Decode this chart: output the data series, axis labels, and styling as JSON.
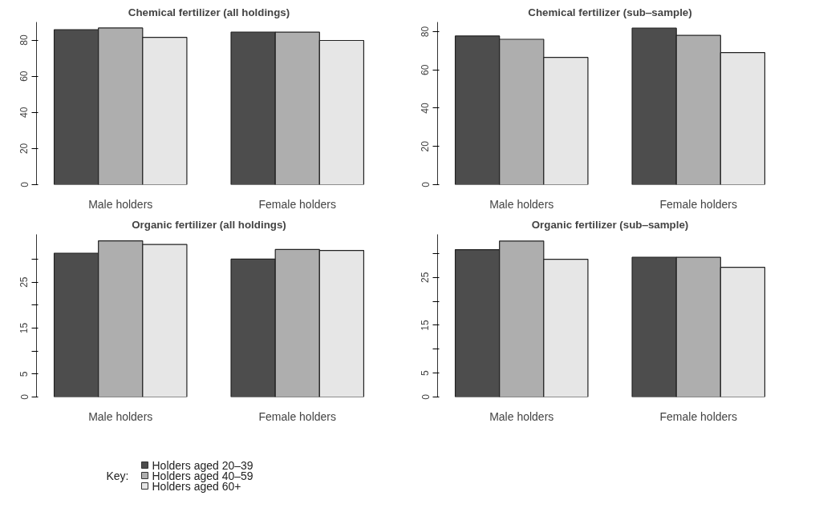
{
  "chart_data": [
    {
      "type": "bar",
      "title": "Chemical fertilizer (all holdings)",
      "categories": [
        "Male holders",
        "Female holders"
      ],
      "ylim": [
        0,
        90
      ],
      "yticks": [
        0,
        20,
        40,
        60,
        80
      ],
      "series": [
        {
          "color": "#4d4d4d",
          "values": [
            85.7,
            84.4
          ]
        },
        {
          "color": "#aeaeae",
          "values": [
            86.7,
            84.4
          ]
        },
        {
          "color": "#e6e6e6",
          "values": [
            81.5,
            79.8
          ]
        }
      ]
    },
    {
      "type": "bar",
      "title": "Chemical fertilizer (sub‒sample)",
      "categories": [
        "Male holders",
        "Female holders"
      ],
      "ylim": [
        0,
        85
      ],
      "yticks": [
        0,
        20,
        40,
        60,
        80
      ],
      "series": [
        {
          "color": "#4d4d4d",
          "values": [
            77.7,
            81.8
          ]
        },
        {
          "color": "#aeaeae",
          "values": [
            76.0,
            78.0
          ]
        },
        {
          "color": "#e6e6e6",
          "values": [
            66.5,
            69.0
          ]
        }
      ]
    },
    {
      "type": "bar",
      "title": "Organic fertilizer (all holdings)",
      "categories": [
        "Male holders",
        "Female holders"
      ],
      "ylim": [
        0,
        35.4
      ],
      "yticks": [
        0,
        5,
        {
          "value": 10,
          "label": null
        },
        15,
        {
          "value": 20,
          "label": null
        },
        25,
        {
          "value": 30,
          "label": null
        }
      ],
      "legend": "bottom",
      "legend_title": "Key:",
      "series": [
        {
          "name": "Holders aged 20–39",
          "color": "#4d4d4d",
          "values": [
            31.3,
            30.0
          ]
        },
        {
          "name": "Holders aged 40–59",
          "color": "#aeaeae",
          "values": [
            34.0,
            32.1
          ]
        },
        {
          "name": "Holders aged 60+",
          "color": "#e6e6e6",
          "values": [
            33.2,
            31.9
          ]
        }
      ]
    },
    {
      "type": "bar",
      "title": "Organic fertilizer (sub‒sample)",
      "categories": [
        "Male holders",
        "Female holders"
      ],
      "ylim": [
        0,
        34
      ],
      "yticks": [
        0,
        5,
        {
          "value": 10,
          "label": null
        },
        15,
        {
          "value": 20,
          "label": null
        },
        25,
        {
          "value": 30,
          "label": null
        }
      ],
      "series": [
        {
          "color": "#4d4d4d",
          "values": [
            30.8,
            29.2
          ]
        },
        {
          "color": "#aeaeae",
          "values": [
            32.6,
            29.2
          ]
        },
        {
          "color": "#e6e6e6",
          "values": [
            28.8,
            27.1
          ]
        }
      ]
    }
  ]
}
